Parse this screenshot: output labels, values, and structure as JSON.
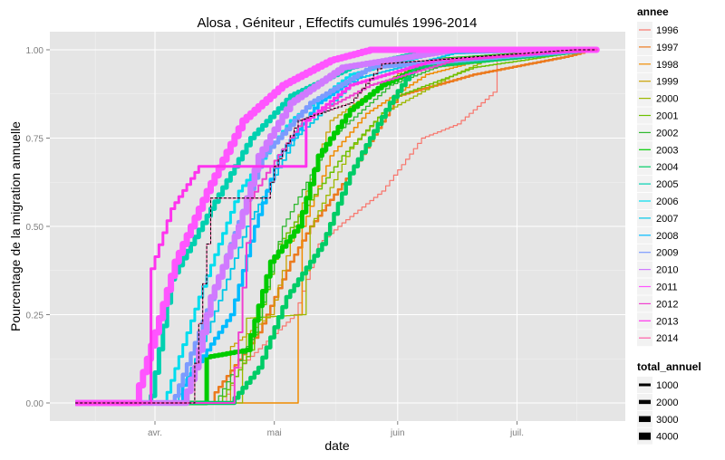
{
  "chart_data": {
    "type": "line",
    "title": "Alosa , Géniteur , Effectifs cumulés 1996-2014",
    "xlabel": "date",
    "ylabel": "Pourcentage de la migration annuelle",
    "x_ticks": [
      {
        "date": "04-01",
        "label": "avr."
      },
      {
        "date": "05-01",
        "label": "mai"
      },
      {
        "date": "06-01",
        "label": "juin"
      },
      {
        "date": "07-01",
        "label": "juil."
      }
    ],
    "y_ticks": [
      "0.00",
      "0.25",
      "0.50",
      "0.75",
      "1.00"
    ],
    "xlim": [
      "03-12",
      "07-21"
    ],
    "ylim": [
      0,
      1
    ],
    "grid": true,
    "legend_position": "right",
    "color_legend_title": "annee",
    "size_legend_title": "total_annuel",
    "size_legend": [
      "1000",
      "2000",
      "3000",
      "4000"
    ],
    "series": [
      {
        "name": "1996",
        "color": "#F8766D",
        "points": [
          [
            "04-18",
            0
          ],
          [
            "04-22",
            0.1
          ],
          [
            "05-06",
            0.25
          ],
          [
            "05-12",
            0.45
          ],
          [
            "05-18",
            0.51
          ],
          [
            "05-28",
            0.6
          ],
          [
            "06-07",
            0.75
          ],
          [
            "06-16",
            0.79
          ],
          [
            "06-25",
            0.88
          ],
          [
            "06-26",
            0.97
          ],
          [
            "07-20",
            1
          ]
        ]
      },
      {
        "name": "1997",
        "color": "#EC7A1E",
        "points": [
          [
            "04-15",
            0
          ],
          [
            "04-16",
            0.03
          ],
          [
            "04-27",
            0.2
          ],
          [
            "05-05",
            0.4
          ],
          [
            "05-10",
            0.5
          ],
          [
            "05-20",
            0.65
          ],
          [
            "06-01",
            0.87
          ],
          [
            "06-20",
            0.93
          ],
          [
            "07-13",
            0.98
          ],
          [
            "07-20",
            1
          ]
        ]
      },
      {
        "name": "1998",
        "color": "#F08C00",
        "points": [
          [
            "05-07",
            0
          ],
          [
            "05-07",
            0.25
          ],
          [
            "05-08",
            0.5
          ],
          [
            "05-15",
            0.7
          ],
          [
            "05-24",
            0.82
          ],
          [
            "06-08",
            0.93
          ],
          [
            "06-25",
            0.98
          ],
          [
            "07-20",
            1
          ]
        ]
      },
      {
        "name": "1999",
        "color": "#C9A000",
        "points": [
          [
            "04-20",
            0
          ],
          [
            "04-20",
            0.16
          ],
          [
            "04-30",
            0.25
          ],
          [
            "05-06",
            0.5
          ],
          [
            "05-15",
            0.8
          ],
          [
            "06-02",
            0.94
          ],
          [
            "07-20",
            1
          ]
        ]
      },
      {
        "name": "2000",
        "color": "#9DB800",
        "points": [
          [
            "04-22",
            0
          ],
          [
            "04-24",
            0.24
          ],
          [
            "05-08",
            0.25
          ],
          [
            "05-10",
            0.5
          ],
          [
            "05-20",
            0.72
          ],
          [
            "05-28",
            0.82
          ],
          [
            "06-15",
            0.93
          ],
          [
            "06-25",
            0.98
          ],
          [
            "07-20",
            1
          ]
        ]
      },
      {
        "name": "2001",
        "color": "#6CC000",
        "points": [
          [
            "04-17",
            0
          ],
          [
            "04-25",
            0.15
          ],
          [
            "05-02",
            0.45
          ],
          [
            "05-18",
            0.7
          ],
          [
            "06-01",
            0.87
          ],
          [
            "06-20",
            0.95
          ],
          [
            "07-20",
            1
          ]
        ]
      },
      {
        "name": "2002",
        "color": "#2EB82E",
        "points": [
          [
            "04-16",
            0
          ],
          [
            "04-26",
            0.2
          ],
          [
            "05-03",
            0.5
          ],
          [
            "05-15",
            0.75
          ],
          [
            "05-30",
            0.9
          ],
          [
            "06-15",
            0.97
          ],
          [
            "07-20",
            1
          ]
        ]
      },
      {
        "name": "2003",
        "color": "#00CC00",
        "points": [
          [
            "04-13",
            0
          ],
          [
            "04-14",
            0.13
          ],
          [
            "04-24",
            0.15
          ],
          [
            "04-30",
            0.4
          ],
          [
            "05-07",
            0.5
          ],
          [
            "05-12",
            0.7
          ],
          [
            "05-20",
            0.83
          ],
          [
            "05-28",
            0.9
          ],
          [
            "06-10",
            0.97
          ],
          [
            "07-20",
            1
          ]
        ]
      },
      {
        "name": "2004",
        "color": "#00CC66",
        "points": [
          [
            "04-20",
            0
          ],
          [
            "04-27",
            0.1
          ],
          [
            "05-04",
            0.3
          ],
          [
            "05-13",
            0.45
          ],
          [
            "05-20",
            0.65
          ],
          [
            "05-30",
            0.85
          ],
          [
            "06-05",
            0.95
          ],
          [
            "07-20",
            1
          ]
        ]
      },
      {
        "name": "2005",
        "color": "#00D0B0",
        "points": [
          [
            "03-31",
            0
          ],
          [
            "03-31",
            0.02
          ],
          [
            "04-05",
            0.35
          ],
          [
            "04-15",
            0.55
          ],
          [
            "04-25",
            0.75
          ],
          [
            "05-05",
            0.87
          ],
          [
            "05-20",
            0.95
          ],
          [
            "06-10",
            1
          ]
        ]
      },
      {
        "name": "2006",
        "color": "#00DDEE",
        "points": [
          [
            "04-03",
            0
          ],
          [
            "04-04",
            0.03
          ],
          [
            "04-12",
            0.3
          ],
          [
            "04-22",
            0.6
          ],
          [
            "05-05",
            0.8
          ],
          [
            "05-20",
            0.93
          ],
          [
            "06-10",
            0.99
          ],
          [
            "07-20",
            1
          ]
        ]
      },
      {
        "name": "2007",
        "color": "#00C8E8",
        "points": [
          [
            "04-06",
            0
          ],
          [
            "04-14",
            0.2
          ],
          [
            "04-24",
            0.5
          ],
          [
            "05-06",
            0.75
          ],
          [
            "05-22",
            0.92
          ],
          [
            "06-15",
            0.99
          ],
          [
            "07-20",
            1
          ]
        ]
      },
      {
        "name": "2008",
        "color": "#00BBFF",
        "points": [
          [
            "04-07",
            0
          ],
          [
            "04-08",
            0.05
          ],
          [
            "04-20",
            0.25
          ],
          [
            "04-26",
            0.5
          ],
          [
            "05-02",
            0.7
          ],
          [
            "05-12",
            0.85
          ],
          [
            "05-25",
            0.95
          ],
          [
            "07-20",
            1
          ]
        ]
      },
      {
        "name": "2009",
        "color": "#7B9BFF",
        "points": [
          [
            "04-05",
            0
          ],
          [
            "04-06",
            0.02
          ],
          [
            "04-12",
            0.2
          ],
          [
            "04-20",
            0.45
          ],
          [
            "04-28",
            0.7
          ],
          [
            "05-10",
            0.85
          ],
          [
            "05-25",
            0.95
          ],
          [
            "07-20",
            1
          ]
        ]
      },
      {
        "name": "2010",
        "color": "#D07AFF",
        "points": [
          [
            "04-08",
            0
          ],
          [
            "04-11",
            0.1
          ],
          [
            "04-15",
            0.3
          ],
          [
            "04-22",
            0.5
          ],
          [
            "04-27",
            0.7
          ],
          [
            "05-05",
            0.85
          ],
          [
            "05-18",
            0.95
          ],
          [
            "06-15",
            1
          ]
        ]
      },
      {
        "name": "2011",
        "color": "#FF55FF",
        "points": [
          [
            "03-27",
            0
          ],
          [
            "03-28",
            0.05
          ],
          [
            "04-01",
            0.2
          ],
          [
            "04-06",
            0.4
          ],
          [
            "04-14",
            0.6
          ],
          [
            "04-23",
            0.8
          ],
          [
            "05-03",
            0.9
          ],
          [
            "05-15",
            0.97
          ],
          [
            "05-25",
            1
          ]
        ]
      },
      {
        "name": "2012",
        "color": "#F040D0",
        "points": [
          [
            "04-20",
            0
          ],
          [
            "04-22",
            0.2
          ],
          [
            "04-25",
            0.58
          ],
          [
            "04-30",
            0.67
          ],
          [
            "05-08",
            0.8
          ],
          [
            "05-25",
            0.9
          ],
          [
            "06-15",
            0.97
          ],
          [
            "07-20",
            1
          ]
        ]
      },
      {
        "name": "2013",
        "color": "#FF33EE",
        "points": [
          [
            "03-31",
            0
          ],
          [
            "03-31",
            0.38
          ],
          [
            "04-05",
            0.55
          ],
          [
            "04-12",
            0.67
          ],
          [
            "05-08",
            0.67
          ],
          [
            "05-09",
            0.8
          ],
          [
            "05-20",
            0.9
          ],
          [
            "06-10",
            0.97
          ],
          [
            "07-20",
            1
          ]
        ]
      },
      {
        "name": "2014",
        "color": "#FF5FA8",
        "points": [
          [
            "04-10",
            0
          ],
          [
            "04-14",
            0.45
          ],
          [
            "04-15",
            0.58
          ],
          [
            "04-29",
            0.58
          ],
          [
            "05-01",
            0.67
          ],
          [
            "05-07",
            0.8
          ],
          [
            "05-20",
            0.85
          ],
          [
            "05-28",
            0.96
          ],
          [
            "06-20",
            0.98
          ],
          [
            "07-15",
            1
          ]
        ]
      }
    ],
    "reference_line": {
      "style": "dashed",
      "color": "#000000",
      "points": [
        [
          "04-10",
          0
        ],
        [
          "04-14",
          0.45
        ],
        [
          "04-15",
          0.58
        ],
        [
          "04-29",
          0.58
        ],
        [
          "05-01",
          0.67
        ],
        [
          "05-07",
          0.8
        ],
        [
          "05-20",
          0.85
        ],
        [
          "05-28",
          0.96
        ],
        [
          "06-20",
          0.98
        ],
        [
          "07-15",
          1
        ]
      ]
    }
  }
}
